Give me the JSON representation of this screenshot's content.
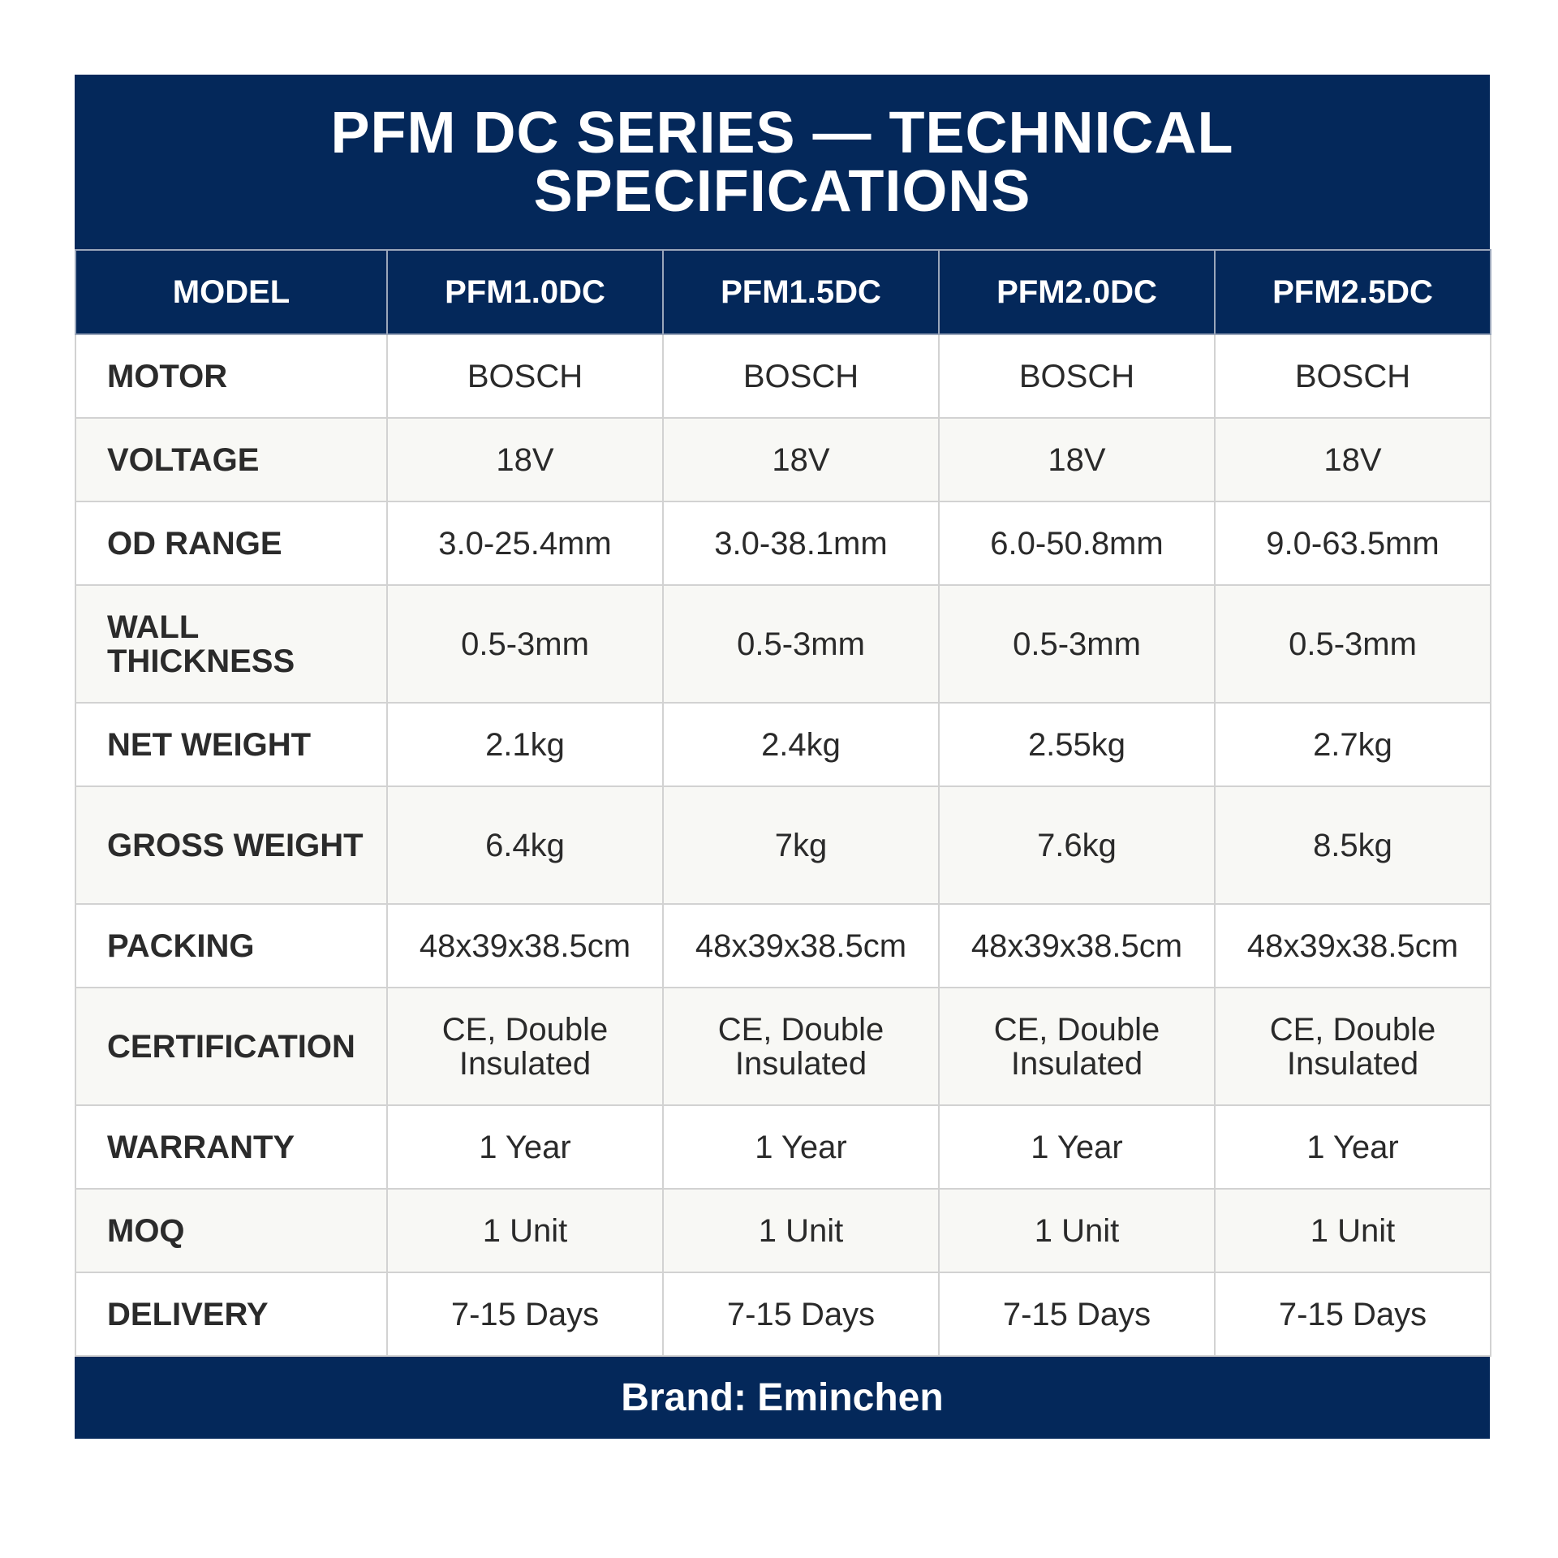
{
  "title": "PFM DC SERIES — TECHNICAL SPECIFICATIONS",
  "table": {
    "header": {
      "label": "MODEL",
      "models": [
        "PFM1.0DC",
        "PFM1.5DC",
        "PFM2.0DC",
        "PFM2.5DC"
      ]
    },
    "rows": [
      {
        "label": "MOTOR",
        "values": [
          "BOSCH",
          "BOSCH",
          "BOSCH",
          "BOSCH"
        ]
      },
      {
        "label": "VOLTAGE",
        "values": [
          "18V",
          "18V",
          "18V",
          "18V"
        ]
      },
      {
        "label": "OD RANGE",
        "values": [
          "3.0-25.4mm",
          "3.0-38.1mm",
          "6.0-50.8mm",
          "9.0-63.5mm"
        ]
      },
      {
        "label": "WALL THICKNESS",
        "values": [
          "0.5-3mm",
          "0.5-3mm",
          "0.5-3mm",
          "0.5-3mm"
        ]
      },
      {
        "label": "NET WEIGHT",
        "values": [
          "2.1kg",
          "2.4kg",
          "2.55kg",
          "2.7kg"
        ]
      },
      {
        "label": "GROSS WEIGHT",
        "values": [
          "6.4kg",
          "7kg",
          "7.6kg",
          "8.5kg"
        ]
      },
      {
        "label": "PACKING",
        "values": [
          "48x39x38.5cm",
          "48x39x38.5cm",
          "48x39x38.5cm",
          "48x39x38.5cm"
        ]
      },
      {
        "label": "CERTIFICATION",
        "values": [
          "CE, Double Insulated",
          "CE, Double Insulated",
          "CE, Double Insulated",
          "CE, Double Insulated"
        ]
      },
      {
        "label": "WARRANTY",
        "values": [
          "1 Year",
          "1 Year",
          "1 Year",
          "1 Year"
        ]
      },
      {
        "label": "MOQ",
        "values": [
          "1 Unit",
          "1 Unit",
          "1 Unit",
          "1 Unit"
        ]
      },
      {
        "label": "DELIVERY",
        "values": [
          "7-15 Days",
          "7-15 Days",
          "7-15 Days",
          "7-15 Days"
        ]
      }
    ]
  },
  "footer": "Brand: Eminchen",
  "colors": {
    "navy": "#04285a",
    "border": "#d2d2d2",
    "row_alt": "#f8f8f5"
  }
}
